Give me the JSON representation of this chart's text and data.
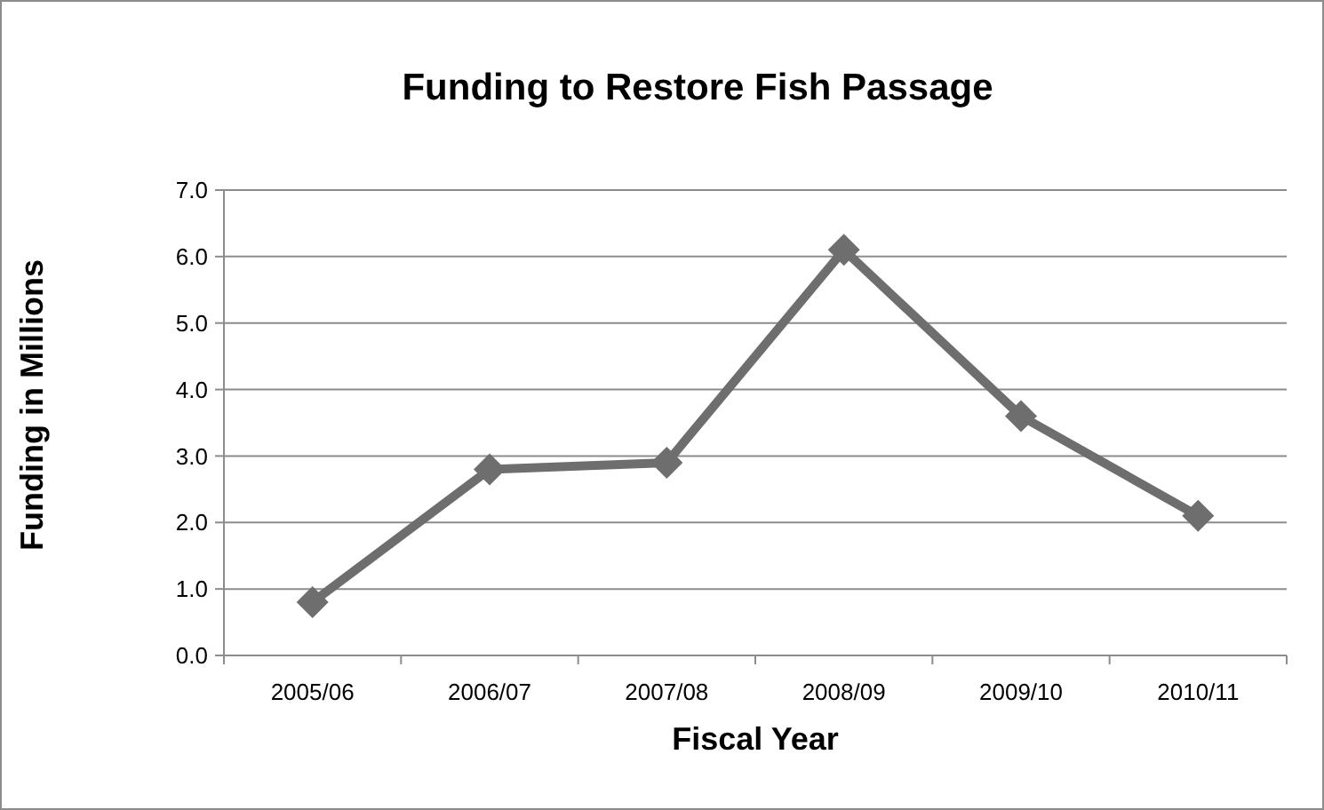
{
  "chart_data": {
    "type": "line",
    "title": "Funding to Restore Fish Passage",
    "xlabel": "Fiscal Year",
    "ylabel": "Funding in Millions",
    "categories": [
      "2005/06",
      "2006/07",
      "2007/08",
      "2008/09",
      "2009/10",
      "2010/11"
    ],
    "series": [
      {
        "color": "#6e6e6e",
        "values": [
          0.8,
          2.8,
          2.9,
          6.1,
          3.6,
          2.1
        ]
      }
    ],
    "ylim": [
      0,
      7
    ],
    "yticks": [
      {
        "value": 0,
        "label": "0.0"
      },
      {
        "value": 1,
        "label": "1.0"
      },
      {
        "value": 2,
        "label": "2.0"
      },
      {
        "value": 3,
        "label": "3.0"
      },
      {
        "value": 4,
        "label": "4.0"
      },
      {
        "value": 5,
        "label": "5.0"
      },
      {
        "value": 6,
        "label": "6.0"
      },
      {
        "value": 7,
        "label": "7.0"
      }
    ],
    "grid": "y",
    "marker": "diamond",
    "line_style": "solid"
  }
}
